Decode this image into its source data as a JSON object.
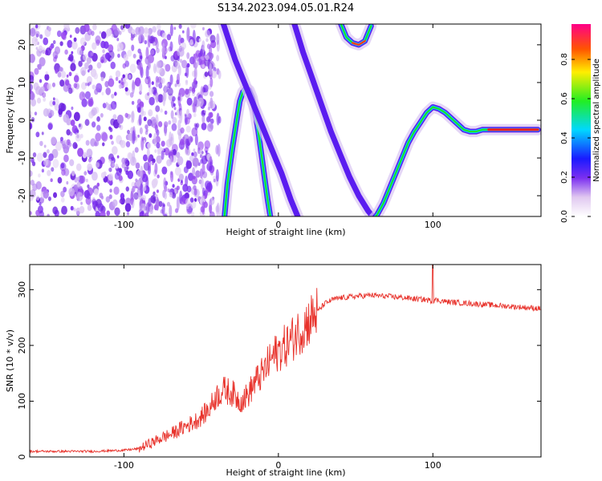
{
  "title": "S134.2023.094.05.01.R24",
  "chart_data": [
    {
      "type": "heatmap",
      "xlabel": "Height of straight line (km)",
      "ylabel": "Frequency (Hz)",
      "xlim": [
        -161,
        170
      ],
      "ylim": [
        -25.5,
        25.5
      ],
      "xticks": [
        -100,
        0,
        100
      ],
      "yticks": [
        -20,
        -10,
        0,
        10,
        20
      ],
      "colorbar": {
        "label": "Normalized spectral amplitude",
        "range": [
          0,
          0.98
        ],
        "ticks": [
          0.0,
          0.2,
          0.4,
          0.6,
          0.8
        ]
      },
      "traces": [
        {
          "x": [
            -35,
            -33,
            -30,
            -27,
            -25,
            -23,
            -21,
            -19,
            -17,
            -15,
            -13,
            -11,
            -9,
            -7,
            -5
          ],
          "y": [
            -26,
            -17,
            -8,
            0,
            5,
            7.5,
            8.5,
            8,
            6,
            2,
            -3,
            -9,
            -15,
            -21,
            -26
          ]
        },
        {
          "x": [
            -36,
            -28,
            -18,
            -8,
            2,
            8,
            13
          ],
          "y": [
            26,
            16,
            6,
            -4,
            -14,
            -21,
            -26
          ]
        },
        {
          "x": [
            10,
            16,
            22,
            28,
            34,
            40,
            46,
            52,
            58,
            62,
            64,
            66
          ],
          "y": [
            26,
            18,
            11,
            4,
            -3,
            -9,
            -15,
            -20,
            -24,
            -26,
            -26.5,
            -27
          ]
        },
        {
          "x": [
            40,
            44,
            48,
            52,
            56,
            60
          ],
          "y": [
            26,
            22,
            20.5,
            20,
            21,
            25
          ]
        },
        {
          "x": [
            60,
            64,
            68,
            72,
            76,
            80,
            84,
            88,
            92,
            96,
            100,
            104,
            108,
            112,
            116,
            120,
            124,
            128,
            132,
            136,
            140,
            150,
            160,
            168
          ],
          "y": [
            -27,
            -25,
            -22,
            -18,
            -14,
            -10,
            -6,
            -3,
            -0.5,
            2,
            3.5,
            3,
            2,
            0.5,
            -1,
            -2.5,
            -3,
            -3,
            -2.5,
            -2.5,
            -2.5,
            -2.5,
            -2.5,
            -2.5
          ]
        }
      ]
    },
    {
      "type": "line",
      "xlabel": "Height of straight line (km)",
      "ylabel": "SNR (10 * v/v)",
      "xlim": [
        -161,
        170
      ],
      "ylim": [
        0,
        345
      ],
      "xticks": [
        -100,
        0,
        100
      ],
      "yticks": [
        0,
        100,
        200,
        300
      ],
      "series": [
        {
          "color": "#e8322b",
          "x": [
            -161,
            -140,
            -120,
            -100,
            -90,
            -85,
            -80,
            -75,
            -70,
            -65,
            -60,
            -55,
            -50,
            -45,
            -40,
            -35,
            -30,
            -25,
            -20,
            -15,
            -10,
            -5,
            0,
            5,
            10,
            15,
            20,
            25,
            30,
            35,
            40,
            50,
            60,
            70,
            80,
            90,
            95,
            99,
            100,
            101,
            105,
            110,
            120,
            130,
            140,
            150,
            160,
            170
          ],
          "y": [
            10,
            10,
            10,
            12,
            15,
            22,
            28,
            35,
            40,
            48,
            55,
            62,
            72,
            85,
            110,
            120,
            115,
            100,
            110,
            135,
            150,
            175,
            190,
            200,
            215,
            230,
            245,
            260,
            275,
            282,
            285,
            288,
            290,
            288,
            286,
            283,
            282,
            280,
            280,
            282,
            280,
            278,
            276,
            274,
            272,
            270,
            268,
            266
          ]
        }
      ]
    }
  ]
}
